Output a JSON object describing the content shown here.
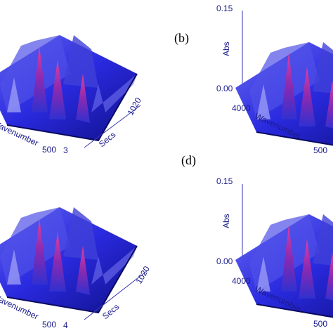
{
  "panels": [
    {
      "x_label": "Wavenumber",
      "x_end": "500",
      "y_start": "3",
      "y_label": "Secs",
      "y_end": "1020"
    },
    {
      "label": "(b)",
      "z_top": "0.15",
      "z_label": "Abs",
      "z_bottom": "0.00",
      "x_start": "4000",
      "x_label": "Wavenumber",
      "x_end": "500"
    },
    {
      "label": "(d)"
    },
    {
      "x_label": "Wavenumber",
      "x_end": "500",
      "y_start": "4",
      "y_label": "Secs",
      "y_end": "1020"
    },
    {
      "z_top": "0.15",
      "z_label": "Abs",
      "z_bottom": "0.00",
      "x_start": "4000",
      "x_label": "Wavenumber",
      "x_end": "500"
    }
  ]
}
